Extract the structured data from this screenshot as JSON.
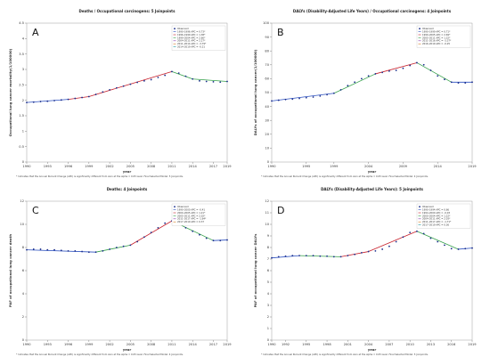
{
  "chart_data": [
    {
      "panel_label": "A",
      "type": "line",
      "title": "Deaths / Occupational carcinogens: 5 Joinpoints",
      "xlabel": "year",
      "ylabel": "Occupational lung cancer mortality(1/100000)",
      "xlim": [
        1990,
        2019
      ],
      "ylim": [
        0,
        4.5
      ],
      "xticks": [
        "1990",
        "1993",
        "1996",
        "1999",
        "2002",
        "2005",
        "2008",
        "2011",
        "2014",
        "2017",
        "2019"
      ],
      "yticks": [
        "0",
        "0.5",
        "1",
        "1.5",
        "2",
        "2.5",
        "3",
        "3.5",
        "4",
        "4.5"
      ],
      "legend_title": "Observed",
      "legend_entries": [
        "1990–1996 APC = 0.73*",
        "1996–1999 APC = 1.38*",
        "1999–2004 APC = 2.60*",
        "2004–2011 APC = 2.27*",
        "2011–2014 APC = -3.79*",
        "2014–2019 APC = -0.21"
      ],
      "footnote": "* Indicates that the Annual Percent Change (APC) is significantly different from zero at the alpha = 0.05 level. Final Selected Model: 5 Joinpoints.",
      "series": [
        {
          "name": "Observed",
          "x": [
            1990,
            1991,
            1992,
            1993,
            1994,
            1995,
            1996,
            1997,
            1998,
            1999,
            2000,
            2001,
            2002,
            2003,
            2004,
            2005,
            2006,
            2007,
            2008,
            2009,
            2010,
            2011,
            2012,
            2013,
            2014,
            2015,
            2016,
            2017,
            2018,
            2019
          ],
          "y": [
            1.93,
            1.94,
            1.96,
            1.97,
            1.99,
            2.01,
            2.03,
            2.06,
            2.09,
            2.12,
            2.19,
            2.27,
            2.34,
            2.4,
            2.46,
            2.52,
            2.58,
            2.63,
            2.67,
            2.74,
            2.81,
            2.93,
            2.88,
            2.78,
            2.69,
            2.63,
            2.61,
            2.6,
            2.59,
            2.61
          ]
        }
      ],
      "segments": [
        {
          "x": [
            1990,
            1996
          ],
          "y": [
            1.93,
            2.03
          ],
          "color": "#2a4fbf"
        },
        {
          "x": [
            1996,
            1999
          ],
          "y": [
            2.03,
            2.12
          ],
          "color": "#c71f2b"
        },
        {
          "x": [
            1999,
            2004
          ],
          "y": [
            2.12,
            2.46
          ],
          "color": "#c71f2b"
        },
        {
          "x": [
            2004,
            2011
          ],
          "y": [
            2.46,
            2.93
          ],
          "color": "#c71f2b"
        },
        {
          "x": [
            2011,
            2014
          ],
          "y": [
            2.93,
            2.69
          ],
          "color": "#35a04a"
        },
        {
          "x": [
            2014,
            2019
          ],
          "y": [
            2.69,
            2.61
          ],
          "color": "#35a04a"
        }
      ]
    },
    {
      "panel_label": "B",
      "type": "line",
      "title": "DALYs (Disability-Adjusted Life Years) / Occupational carcinogens: 4 Joinpoints",
      "xlabel": "year",
      "ylabel": "DALYs of occupational lung cancer(1/100000)",
      "xlim": [
        1990,
        2019
      ],
      "ylim": [
        0,
        100
      ],
      "xticks": [
        "1990",
        "1995",
        "1999",
        "2004",
        "2009",
        "2014",
        "2019"
      ],
      "yticks": [
        "0",
        "10",
        "20",
        "30",
        "40",
        "50",
        "60",
        "70",
        "80",
        "90",
        "100"
      ],
      "legend_title": "Observed",
      "legend_entries": [
        "1990–1999 APC = 0.71*",
        "1999–2005 APC = 2.69*",
        "2005–2011 APC = 1.32*",
        "2011–2016 APC = -3.37*",
        "2016–2019 APC = -0.25"
      ],
      "footnote": "* Indicates that the Annual Percent Change (APC) is significantly different from zero at the alpha = 0.05 level. Final Selected Model: 4 Joinpoints.",
      "series": [
        {
          "name": "Observed",
          "x": [
            1990,
            1991,
            1992,
            1993,
            1994,
            1995,
            1996,
            1997,
            1998,
            1999,
            2000,
            2001,
            2002,
            2003,
            2004,
            2005,
            2006,
            2007,
            2008,
            2009,
            2010,
            2011,
            2012,
            2013,
            2014,
            2015,
            2016,
            2017,
            2018,
            2019
          ],
          "y": [
            44.0,
            44.5,
            45.0,
            45.3,
            45.8,
            46.3,
            46.8,
            47.5,
            48.5,
            49.5,
            52.0,
            55.0,
            57.5,
            60.0,
            62.0,
            63.5,
            64.5,
            65.5,
            66.0,
            67.5,
            69.5,
            71.5,
            70.0,
            66.0,
            62.0,
            59.5,
            57.5,
            57.0,
            57.0,
            57.5
          ]
        }
      ],
      "segments": [
        {
          "x": [
            1990,
            1999
          ],
          "y": [
            44.0,
            49.5
          ],
          "color": "#2a4fbf"
        },
        {
          "x": [
            1999,
            2005
          ],
          "y": [
            49.5,
            63.5
          ],
          "color": "#35a04a"
        },
        {
          "x": [
            2005,
            2011
          ],
          "y": [
            63.5,
            71.5
          ],
          "color": "#c71f2b"
        },
        {
          "x": [
            2011,
            2016
          ],
          "y": [
            71.5,
            57.5
          ],
          "color": "#35a04a"
        },
        {
          "x": [
            2016,
            2019
          ],
          "y": [
            57.5,
            57.5
          ],
          "color": "#2a4fbf"
        }
      ]
    },
    {
      "panel_label": "C",
      "type": "line",
      "title": "Deaths: 4 Joinpoints",
      "xlabel": "year",
      "ylabel": "PAF of occupational lung cancer death",
      "xlim": [
        1990,
        2019
      ],
      "ylim": [
        0,
        12
      ],
      "xticks": [
        "1990",
        "1993",
        "1996",
        "1999",
        "2002",
        "2005",
        "2008",
        "2011",
        "2014",
        "2017",
        "2019"
      ],
      "yticks": [
        "0",
        "2",
        "4",
        "6",
        "8",
        "10",
        "12"
      ],
      "legend_title": "Observed",
      "legend_entries": [
        "1990–2000 APC = -0.41",
        "2000–2005 APC = 1.21*",
        "2005–2011 APC = 2.02*",
        "2011–2017 APC = -1.64*",
        "2017–2019 APC = 0.37"
      ],
      "footnote": "* Indicates that the Annual Percent Change (APC) is significantly different from zero at the alpha = 0.05 level. Final Selected Model: 4 Joinpoints.",
      "series": [
        {
          "name": "Observed",
          "x": [
            1990,
            1991,
            1992,
            1993,
            1994,
            1995,
            1996,
            1997,
            1998,
            1999,
            2000,
            2001,
            2002,
            2003,
            2004,
            2005,
            2006,
            2007,
            2008,
            2009,
            2010,
            2011,
            2012,
            2013,
            2014,
            2015,
            2016,
            2017,
            2018,
            2019
          ],
          "y": [
            7.8,
            7.85,
            7.85,
            7.8,
            7.8,
            7.75,
            7.7,
            7.7,
            7.65,
            7.6,
            7.6,
            7.7,
            7.85,
            8.0,
            8.1,
            8.2,
            8.5,
            8.9,
            9.3,
            9.7,
            10.1,
            10.3,
            10.0,
            9.7,
            9.4,
            9.1,
            8.8,
            8.6,
            8.6,
            8.65
          ]
        }
      ],
      "segments": [
        {
          "x": [
            1990,
            2000
          ],
          "y": [
            7.8,
            7.6
          ],
          "color": "#2a4fbf"
        },
        {
          "x": [
            2000,
            2005
          ],
          "y": [
            7.6,
            8.2
          ],
          "color": "#35a04a"
        },
        {
          "x": [
            2005,
            2011
          ],
          "y": [
            8.2,
            10.3
          ],
          "color": "#c71f2b"
        },
        {
          "x": [
            2011,
            2017
          ],
          "y": [
            10.3,
            8.6
          ],
          "color": "#35a04a"
        },
        {
          "x": [
            2017,
            2019
          ],
          "y": [
            8.6,
            8.65
          ],
          "color": "#2a4fbf"
        }
      ]
    },
    {
      "panel_label": "D",
      "type": "line",
      "title": "DALYs (Disability-Adjusted Life Years): 5 Joinpoints",
      "xlabel": "year",
      "ylabel": "PAF of occupational lung cancer DALYs",
      "xlim": [
        1990,
        2019
      ],
      "ylim": [
        0,
        12
      ],
      "xticks": [
        "1990",
        "1992",
        "1995",
        "1998",
        "2001",
        "2004",
        "2007",
        "2010",
        "2013",
        "2016",
        "2019"
      ],
      "yticks": [
        "0",
        "1",
        "2",
        "3",
        "4",
        "5",
        "6",
        "7",
        "8",
        "9",
        "10",
        "11",
        "12"
      ],
      "legend_title": "Observed",
      "legend_entries": [
        "1990–1994 APC = 0.66",
        "1994–2000 APC = -0.03",
        "2000–2004 APC = 1.22*",
        "2004–2011 APC = 2.03*",
        "2011–2017 APC = -1.71*",
        "2017–2019 APC = 0.36"
      ],
      "footnote": "* Indicates that the Annual Percent Change (APC) is significantly different from zero at the alpha = 0.05 level. Final Selected Model: 5 Joinpoints.",
      "series": [
        {
          "name": "Observed",
          "x": [
            1990,
            1991,
            1992,
            1993,
            1994,
            1995,
            1996,
            1997,
            1998,
            1999,
            2000,
            2001,
            2002,
            2003,
            2004,
            2005,
            2006,
            2007,
            2008,
            2009,
            2010,
            2011,
            2012,
            2013,
            2014,
            2015,
            2016,
            2017,
            2018,
            2019
          ],
          "y": [
            7.1,
            7.2,
            7.25,
            7.3,
            7.3,
            7.3,
            7.3,
            7.25,
            7.25,
            7.2,
            7.2,
            7.3,
            7.4,
            7.55,
            7.65,
            7.7,
            7.85,
            8.1,
            8.5,
            8.9,
            9.3,
            9.4,
            9.2,
            8.8,
            8.5,
            8.2,
            7.9,
            7.85,
            7.9,
            7.95
          ]
        }
      ],
      "segments": [
        {
          "x": [
            1990,
            1994
          ],
          "y": [
            7.1,
            7.3
          ],
          "color": "#2a4fbf"
        },
        {
          "x": [
            1994,
            2000
          ],
          "y": [
            7.3,
            7.2
          ],
          "color": "#35a04a"
        },
        {
          "x": [
            2000,
            2004
          ],
          "y": [
            7.2,
            7.65
          ],
          "color": "#c71f2b"
        },
        {
          "x": [
            2004,
            2011
          ],
          "y": [
            7.65,
            9.4
          ],
          "color": "#c71f2b"
        },
        {
          "x": [
            2011,
            2017
          ],
          "y": [
            9.4,
            7.85
          ],
          "color": "#35a04a"
        },
        {
          "x": [
            2017,
            2019
          ],
          "y": [
            7.85,
            7.95
          ],
          "color": "#2a4fbf"
        }
      ]
    }
  ]
}
